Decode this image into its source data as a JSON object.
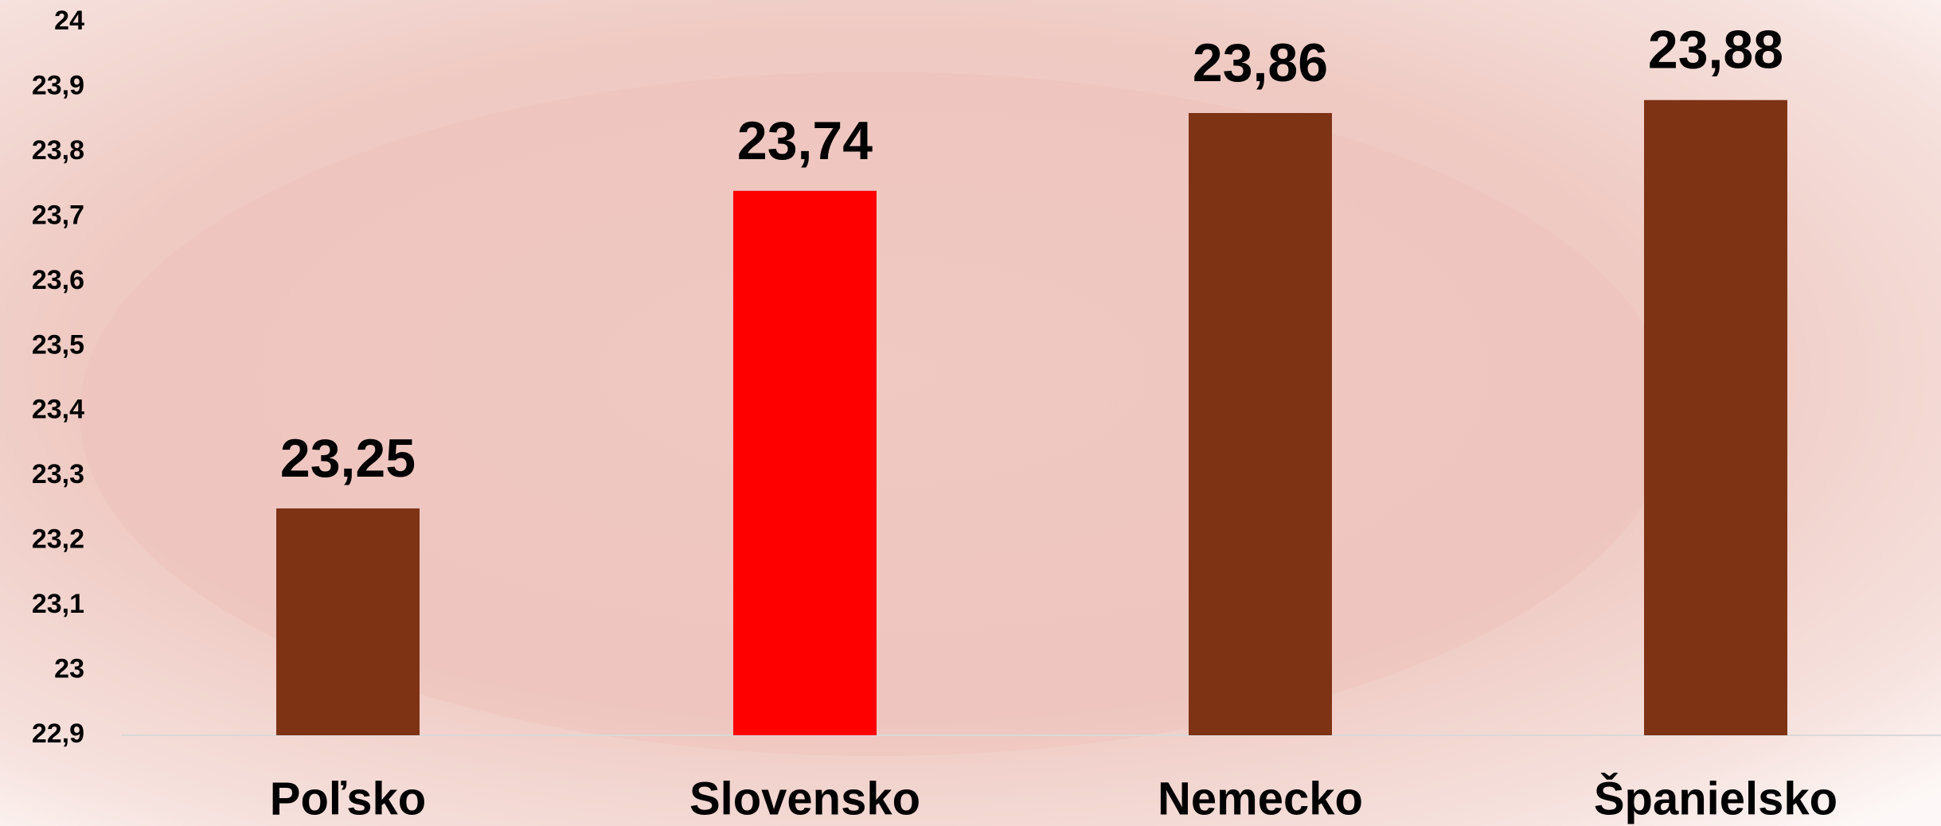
{
  "chart_data": {
    "type": "bar",
    "categories": [
      "Poľsko",
      "Slovensko",
      "Nemecko",
      "Španielsko"
    ],
    "values": [
      23.25,
      23.74,
      23.86,
      23.88
    ],
    "value_labels": [
      "23,25",
      "23,74",
      "23,86",
      "23,88"
    ],
    "colors": [
      "#7f3315",
      "#ff0000",
      "#7f3315",
      "#7f3315"
    ],
    "ylim": [
      22.9,
      24
    ],
    "yticks": [
      {
        "value": 22.9,
        "label": "22,9"
      },
      23,
      {
        "value": 23.1,
        "label": "23,1"
      },
      {
        "value": 23.2,
        "label": "23,2"
      },
      {
        "value": 23.3,
        "label": "23,3"
      },
      {
        "value": 23.4,
        "label": "23,4"
      },
      {
        "value": 23.5,
        "label": "23,5"
      },
      {
        "value": 23.6,
        "label": "23,6"
      },
      {
        "value": 23.7,
        "label": "23,7"
      },
      {
        "value": 23.8,
        "label": "23,8"
      },
      {
        "value": 23.9,
        "label": "23,9"
      },
      24
    ],
    "grid": false
  }
}
